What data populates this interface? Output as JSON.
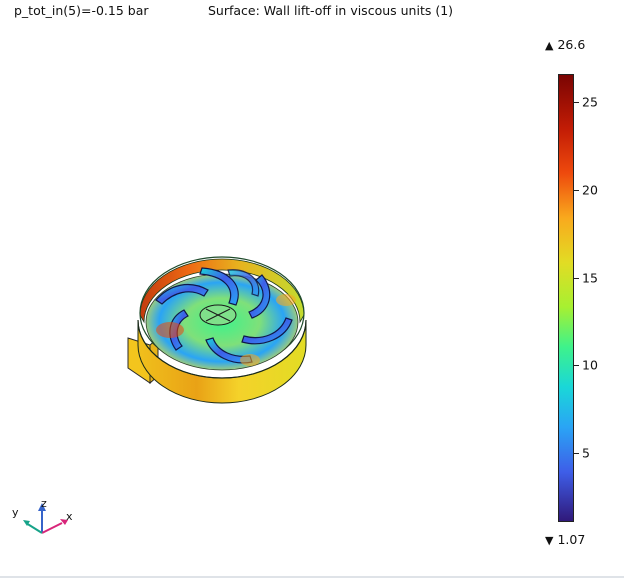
{
  "header": {
    "parameter": "p_tot_in(5)=-0.15 bar",
    "title": "Surface: Wall lift-off in viscous units (1)"
  },
  "colorbar": {
    "max_label": "26.6",
    "min_label": "1.07",
    "max_value": 26.6,
    "min_value": 1.07,
    "ticks": [
      {
        "value": 25,
        "label": "25"
      },
      {
        "value": 20,
        "label": "20"
      },
      {
        "value": 15,
        "label": "15"
      },
      {
        "value": 10,
        "label": "10"
      },
      {
        "value": 5,
        "label": "5"
      }
    ],
    "colormap": [
      "#30197a",
      "#3e5ee8",
      "#2aa4f5",
      "#1ad7d8",
      "#3ef28b",
      "#a7f031",
      "#e2dc24",
      "#f9a91d",
      "#ee4a0d",
      "#c21c05",
      "#7a0403"
    ]
  },
  "axes_triad": {
    "x_label": "x",
    "y_label": "y",
    "z_label": "z",
    "x_color": "#d8257a",
    "y_color": "#17a389",
    "z_color": "#3563c9"
  },
  "model": {
    "name": "impeller-surface-plot",
    "colors": {
      "shroud": "#f0b51c",
      "shroud_hot": "#e3541a",
      "hub": "#6fd9a8",
      "blade": "#3a82e6"
    }
  }
}
